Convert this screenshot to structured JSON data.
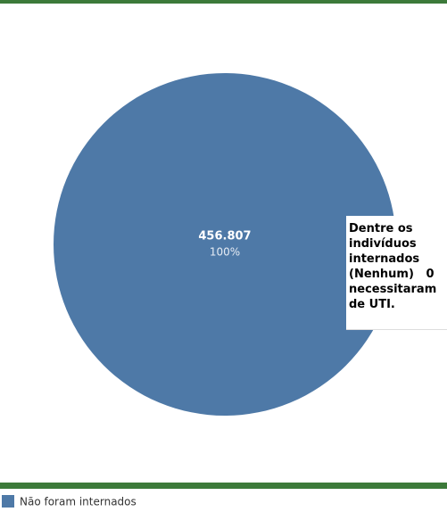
{
  "chart_data": {
    "type": "pie",
    "categories": [
      "Não foram internados"
    ],
    "values": [
      456807
    ],
    "value_labels": [
      "456.807"
    ],
    "percent_labels": [
      "100%"
    ],
    "colors": [
      "#4e79a7"
    ],
    "annotation": [
      "Dentre os",
      "indivíduos",
      "internados",
      "(Nenhum)   0",
      "necessitaram",
      "de UTI."
    ],
    "legend": "bottom-left"
  }
}
